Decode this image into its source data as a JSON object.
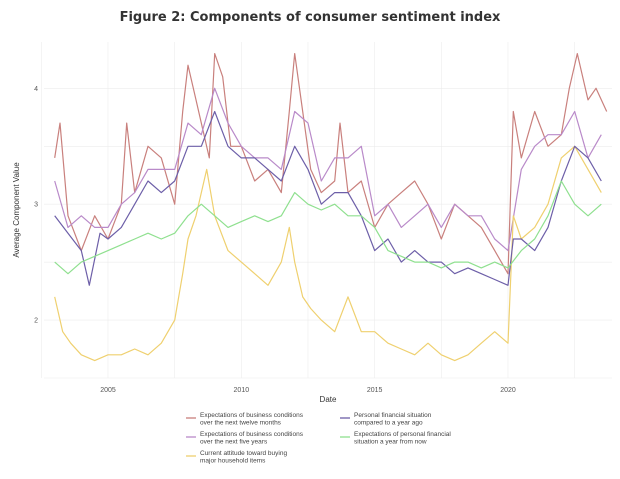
{
  "chart_data": {
    "type": "line",
    "title": "Figure 2: Components of consumer sentiment index",
    "xlabel": "Date",
    "ylabel": "Average Component Value",
    "x_ticks": [
      "2005",
      "2010",
      "2015",
      "2020"
    ],
    "y_ticks": [
      "2",
      "3",
      "4"
    ],
    "xlim": [
      2002.6,
      2023.9
    ],
    "ylim": [
      1.5,
      4.4
    ],
    "grid": true,
    "legend_position": "bottom",
    "series": [
      {
        "name": "Expectations of business conditions over the next twelve months",
        "color": "#c9807d",
        "x": [
          2003.0,
          2003.2,
          2003.5,
          2004.0,
          2004.5,
          2005.0,
          2005.5,
          2005.7,
          2006.0,
          2006.5,
          2007.0,
          2007.5,
          2007.8,
          2008.0,
          2008.3,
          2008.8,
          2009.0,
          2009.3,
          2009.6,
          2010.0,
          2010.5,
          2011.0,
          2011.5,
          2011.8,
          2012.0,
          2012.3,
          2012.6,
          2013.0,
          2013.5,
          2013.7,
          2014.0,
          2014.5,
          2015.0,
          2015.5,
          2016.0,
          2016.5,
          2017.0,
          2017.5,
          2018.0,
          2018.5,
          2019.0,
          2019.5,
          2020.0,
          2020.2,
          2020.5,
          2021.0,
          2021.5,
          2022.0,
          2022.3,
          2022.6,
          2023.0,
          2023.3,
          2023.7
        ],
        "y": [
          3.4,
          3.7,
          2.9,
          2.6,
          2.9,
          2.7,
          3.0,
          3.7,
          3.1,
          3.5,
          3.4,
          3.0,
          3.8,
          4.2,
          3.9,
          3.4,
          4.3,
          4.1,
          3.5,
          3.5,
          3.2,
          3.3,
          3.1,
          3.8,
          4.3,
          3.8,
          3.3,
          3.1,
          3.2,
          3.7,
          3.1,
          3.2,
          2.8,
          3.0,
          3.1,
          3.2,
          3.0,
          2.7,
          3.0,
          2.9,
          2.8,
          2.6,
          2.4,
          3.8,
          3.4,
          3.8,
          3.5,
          3.6,
          4.0,
          4.3,
          3.9,
          4.0,
          3.8
        ]
      },
      {
        "name": "Expectations of business conditions over the next five years",
        "color": "#b98ac9",
        "x": [
          2003.0,
          2003.5,
          2004.0,
          2004.5,
          2005.0,
          2005.5,
          2006.0,
          2006.5,
          2007.0,
          2007.5,
          2008.0,
          2008.5,
          2009.0,
          2009.5,
          2010.0,
          2010.5,
          2011.0,
          2011.5,
          2012.0,
          2012.5,
          2013.0,
          2013.5,
          2014.0,
          2014.5,
          2015.0,
          2015.5,
          2016.0,
          2016.5,
          2017.0,
          2017.5,
          2018.0,
          2018.5,
          2019.0,
          2019.5,
          2020.0,
          2020.5,
          2021.0,
          2021.5,
          2022.0,
          2022.5,
          2023.0,
          2023.5
        ],
        "y": [
          3.2,
          2.8,
          2.9,
          2.8,
          2.8,
          3.0,
          3.1,
          3.3,
          3.3,
          3.3,
          3.7,
          3.6,
          4.0,
          3.7,
          3.5,
          3.4,
          3.4,
          3.3,
          3.8,
          3.7,
          3.2,
          3.4,
          3.4,
          3.5,
          2.9,
          3.0,
          2.8,
          2.9,
          3.0,
          2.8,
          3.0,
          2.9,
          2.9,
          2.7,
          2.6,
          3.3,
          3.5,
          3.6,
          3.6,
          3.8,
          3.4,
          3.6
        ]
      },
      {
        "name": "Current attitude toward buying major household items",
        "color": "#efd06f",
        "x": [
          2003.0,
          2003.3,
          2003.6,
          2004.0,
          2004.5,
          2005.0,
          2005.5,
          2006.0,
          2006.5,
          2007.0,
          2007.5,
          2007.8,
          2008.0,
          2008.3,
          2008.7,
          2009.0,
          2009.5,
          2010.0,
          2010.5,
          2011.0,
          2011.5,
          2011.8,
          2012.0,
          2012.3,
          2012.6,
          2013.0,
          2013.5,
          2014.0,
          2014.5,
          2015.0,
          2015.5,
          2016.0,
          2016.5,
          2017.0,
          2017.5,
          2018.0,
          2018.5,
          2019.0,
          2019.5,
          2020.0,
          2020.2,
          2020.5,
          2021.0,
          2021.5,
          2022.0,
          2022.5,
          2023.0,
          2023.5
        ],
        "y": [
          2.2,
          1.9,
          1.8,
          1.7,
          1.65,
          1.7,
          1.7,
          1.75,
          1.7,
          1.8,
          2.0,
          2.4,
          2.7,
          2.9,
          3.3,
          2.9,
          2.6,
          2.5,
          2.4,
          2.3,
          2.5,
          2.8,
          2.5,
          2.2,
          2.1,
          2.0,
          1.9,
          2.2,
          1.9,
          1.9,
          1.8,
          1.75,
          1.7,
          1.8,
          1.7,
          1.65,
          1.7,
          1.8,
          1.9,
          1.8,
          2.9,
          2.7,
          2.8,
          3.0,
          3.4,
          3.5,
          3.3,
          3.1
        ]
      },
      {
        "name": "Personal financial situation compared to a year ago",
        "color": "#6d5fa8",
        "x": [
          2003.0,
          2003.5,
          2004.0,
          2004.3,
          2004.7,
          2005.0,
          2005.5,
          2006.0,
          2006.5,
          2007.0,
          2007.5,
          2008.0,
          2008.5,
          2009.0,
          2009.5,
          2010.0,
          2010.5,
          2011.0,
          2011.5,
          2012.0,
          2012.5,
          2013.0,
          2013.5,
          2014.0,
          2014.5,
          2015.0,
          2015.5,
          2016.0,
          2016.5,
          2017.0,
          2017.5,
          2018.0,
          2018.5,
          2019.0,
          2019.5,
          2020.0,
          2020.2,
          2020.5,
          2021.0,
          2021.5,
          2022.0,
          2022.5,
          2023.0,
          2023.5
        ],
        "y": [
          2.9,
          2.75,
          2.6,
          2.3,
          2.75,
          2.7,
          2.8,
          3.0,
          3.2,
          3.1,
          3.2,
          3.5,
          3.5,
          3.8,
          3.5,
          3.4,
          3.4,
          3.3,
          3.2,
          3.5,
          3.3,
          3.0,
          3.1,
          3.1,
          2.9,
          2.6,
          2.7,
          2.5,
          2.6,
          2.5,
          2.5,
          2.4,
          2.45,
          2.4,
          2.35,
          2.3,
          2.7,
          2.7,
          2.6,
          2.8,
          3.2,
          3.5,
          3.4,
          3.2
        ]
      },
      {
        "name": "Expectations of personal financial situation a year from now",
        "color": "#8fe08f",
        "x": [
          2003.0,
          2003.5,
          2004.0,
          2004.5,
          2005.0,
          2005.5,
          2006.0,
          2006.5,
          2007.0,
          2007.5,
          2008.0,
          2008.5,
          2009.0,
          2009.5,
          2010.0,
          2010.5,
          2011.0,
          2011.5,
          2012.0,
          2012.5,
          2013.0,
          2013.5,
          2014.0,
          2014.5,
          2015.0,
          2015.5,
          2016.0,
          2016.5,
          2017.0,
          2017.5,
          2018.0,
          2018.5,
          2019.0,
          2019.5,
          2020.0,
          2020.5,
          2021.0,
          2021.5,
          2022.0,
          2022.5,
          2023.0,
          2023.5
        ],
        "y": [
          2.5,
          2.4,
          2.5,
          2.55,
          2.6,
          2.65,
          2.7,
          2.75,
          2.7,
          2.75,
          2.9,
          3.0,
          2.9,
          2.8,
          2.85,
          2.9,
          2.85,
          2.9,
          3.1,
          3.0,
          2.95,
          3.0,
          2.9,
          2.9,
          2.8,
          2.6,
          2.55,
          2.5,
          2.5,
          2.45,
          2.5,
          2.5,
          2.45,
          2.5,
          2.45,
          2.6,
          2.7,
          2.9,
          3.2,
          3.0,
          2.9,
          3.0
        ]
      }
    ],
    "legend": [
      [
        "Expectations of business conditions",
        "over the next twelve months"
      ],
      [
        "Expectations of business conditions",
        "over the next five years"
      ],
      [
        "Current attitude toward buying",
        "major household items"
      ],
      [
        "Personal financial situation",
        "compared to a year ago"
      ],
      [
        "Expectations of personal financial",
        "situation a year from now"
      ]
    ]
  }
}
